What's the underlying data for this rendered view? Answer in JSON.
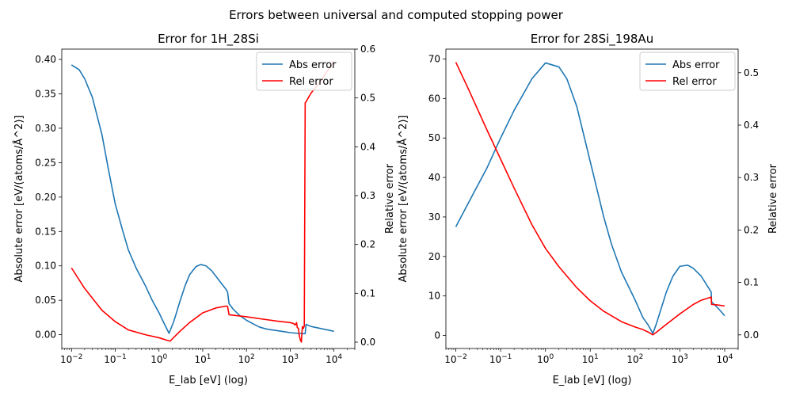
{
  "suptitle": "Errors between universal and computed stopping power",
  "chart_data": [
    {
      "type": "line",
      "title": "Error for 1H_28Si",
      "xlabel": "E_lab [eV] (log)",
      "ylabel_left": "Absolute error [eV/(atoms/Å^2)]",
      "ylabel_right": "Relative error",
      "x_scale": "log",
      "xlim": [
        0.006,
        30000
      ],
      "x_ticks": [
        0.01,
        0.1,
        1,
        10,
        100,
        1000,
        10000
      ],
      "x_tick_labels": [
        [
          "10",
          "−2"
        ],
        [
          "10",
          "−1"
        ],
        [
          "10",
          "0"
        ],
        [
          "10",
          "1"
        ],
        [
          "10",
          "2"
        ],
        [
          "10",
          "3"
        ],
        [
          "10",
          "4"
        ]
      ],
      "ylim_left": [
        -0.02,
        0.415
      ],
      "y_ticks_left": [
        0.0,
        0.05,
        0.1,
        0.15,
        0.2,
        0.25,
        0.3,
        0.35,
        0.4
      ],
      "y_tick_labels_left": [
        "0.00",
        "0.05",
        "0.10",
        "0.15",
        "0.20",
        "0.25",
        "0.30",
        "0.35",
        "0.40"
      ],
      "ylim_right": [
        -0.013,
        0.6
      ],
      "y_ticks_right": [
        0.0,
        0.1,
        0.2,
        0.3,
        0.4,
        0.5,
        0.6
      ],
      "y_tick_labels_right": [
        "0.0",
        "0.1",
        "0.2",
        "0.3",
        "0.4",
        "0.5",
        "0.6"
      ],
      "legend_position": "upper right",
      "series": [
        {
          "name": "Abs error",
          "axis": "left",
          "color": "#1f77b4",
          "x": [
            0.01,
            0.015,
            0.02,
            0.03,
            0.05,
            0.07,
            0.1,
            0.15,
            0.2,
            0.3,
            0.5,
            0.7,
            1.0,
            1.3,
            1.7,
            2.2,
            3,
            4,
            5,
            7,
            9,
            12,
            16,
            20,
            25,
            35,
            37,
            40,
            50,
            70,
            100,
            150,
            200,
            300,
            500,
            700,
            1000,
            1500,
            2000,
            2200,
            2300,
            3000,
            5000,
            10000
          ],
          "y": [
            0.392,
            0.385,
            0.372,
            0.345,
            0.29,
            0.24,
            0.19,
            0.15,
            0.123,
            0.097,
            0.07,
            0.05,
            0.032,
            0.017,
            0.002,
            0.02,
            0.048,
            0.072,
            0.087,
            0.099,
            0.102,
            0.1,
            0.093,
            0.085,
            0.077,
            0.065,
            0.062,
            0.045,
            0.037,
            0.028,
            0.021,
            0.015,
            0.011,
            0.008,
            0.006,
            0.0045,
            0.003,
            0.002,
            0.0015,
            0.0015,
            0.015,
            0.012,
            0.009,
            0.005
          ]
        },
        {
          "name": "Rel error",
          "axis": "right",
          "color": "#ff0000",
          "x": [
            0.01,
            0.02,
            0.05,
            0.1,
            0.2,
            0.5,
            1.0,
            1.5,
            1.8,
            2.2,
            3,
            5,
            10,
            20,
            35,
            37,
            40,
            50,
            100,
            200,
            500,
            1000,
            1200,
            1300,
            1400,
            1450,
            1550,
            1600,
            1700,
            1800,
            1850,
            1900,
            2000,
            2100,
            2200,
            2300,
            3000,
            5000,
            10000
          ],
          "y": [
            0.152,
            0.11,
            0.065,
            0.042,
            0.025,
            0.015,
            0.009,
            0.004,
            0.002,
            0.01,
            0.022,
            0.04,
            0.06,
            0.07,
            0.074,
            0.073,
            0.056,
            0.055,
            0.052,
            0.048,
            0.043,
            0.04,
            0.038,
            0.035,
            0.04,
            0.03,
            0.028,
            0.015,
            0.005,
            0.0,
            0.018,
            0.032,
            0.028,
            0.033,
            0.49,
            0.492,
            0.51,
            0.535,
            0.575
          ]
        }
      ]
    },
    {
      "type": "line",
      "title": "Error for 28Si_198Au",
      "xlabel": "E_lab [eV] (log)",
      "ylabel_left": "Absolute error [eV/(atoms/Å^2)]",
      "ylabel_right": "Relative error",
      "x_scale": "log",
      "xlim": [
        0.006,
        20000
      ],
      "x_ticks": [
        0.01,
        0.1,
        1,
        10,
        100,
        1000,
        10000
      ],
      "x_tick_labels": [
        [
          "10",
          "−2"
        ],
        [
          "10",
          "−1"
        ],
        [
          "10",
          "0"
        ],
        [
          "10",
          "1"
        ],
        [
          "10",
          "2"
        ],
        [
          "10",
          "3"
        ],
        [
          "10",
          "4"
        ]
      ],
      "ylim_left": [
        -3.3,
        72.5
      ],
      "y_ticks_left": [
        0,
        10,
        20,
        30,
        40,
        50,
        60,
        70
      ],
      "y_tick_labels_left": [
        "0",
        "10",
        "20",
        "30",
        "40",
        "50",
        "60",
        "70"
      ],
      "ylim_right": [
        -0.026,
        0.545
      ],
      "y_ticks_right": [
        0.0,
        0.1,
        0.2,
        0.3,
        0.4,
        0.5
      ],
      "y_tick_labels_right": [
        "0.0",
        "0.1",
        "0.2",
        "0.3",
        "0.4",
        "0.5"
      ],
      "legend_position": "upper right",
      "series": [
        {
          "name": "Abs error",
          "axis": "left",
          "color": "#1f77b4",
          "x": [
            0.01,
            0.02,
            0.05,
            0.1,
            0.2,
            0.5,
            1.0,
            2,
            3,
            5,
            10,
            20,
            30,
            50,
            100,
            150,
            200,
            250,
            300,
            500,
            700,
            1000,
            1500,
            2000,
            3000,
            5000,
            5100,
            7000,
            10000
          ],
          "y": [
            27.5,
            34,
            42.5,
            50,
            57,
            65,
            69,
            68,
            65,
            58,
            44,
            30,
            23,
            16,
            9,
            4.5,
            2.5,
            0.5,
            3,
            11,
            15,
            17.5,
            17.8,
            17,
            15,
            11,
            8.5,
            7,
            5
          ]
        },
        {
          "name": "Rel error",
          "axis": "right",
          "color": "#ff0000",
          "x": [
            0.01,
            0.02,
            0.05,
            0.1,
            0.2,
            0.5,
            1.0,
            2,
            5,
            10,
            20,
            50,
            100,
            150,
            200,
            250,
            300,
            500,
            1000,
            2000,
            3000,
            5000,
            5100,
            7000,
            10000
          ],
          "y": [
            0.52,
            0.465,
            0.39,
            0.335,
            0.28,
            0.21,
            0.165,
            0.13,
            0.09,
            0.065,
            0.045,
            0.025,
            0.015,
            0.01,
            0.005,
            0.0,
            0.005,
            0.02,
            0.04,
            0.058,
            0.066,
            0.072,
            0.058,
            0.057,
            0.055
          ]
        }
      ]
    }
  ]
}
